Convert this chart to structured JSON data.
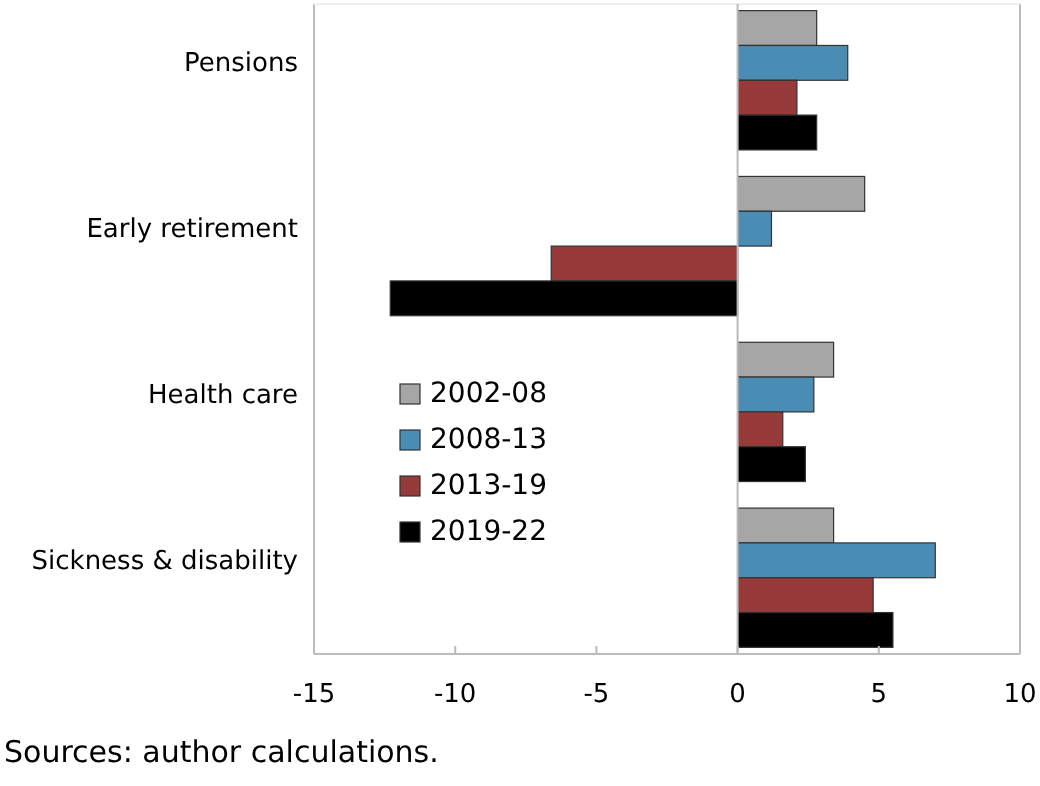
{
  "chart_data": {
    "type": "bar",
    "orientation": "horizontal",
    "categories": [
      "Pensions",
      "Early retirement",
      "Health care",
      "Sickness & disability"
    ],
    "series": [
      {
        "name": "2002-08",
        "color": "#a6a6a6",
        "values": [
          2.8,
          4.5,
          3.4,
          3.4
        ]
      },
      {
        "name": "2008-13",
        "color": "#4a8db4",
        "values": [
          3.9,
          1.2,
          2.7,
          7.0
        ]
      },
      {
        "name": "2013-19",
        "color": "#963a3a",
        "values": [
          2.1,
          -6.6,
          1.6,
          4.8
        ]
      },
      {
        "name": "2019-22",
        "color": "#000000",
        "values": [
          2.8,
          -12.3,
          2.4,
          5.5
        ]
      }
    ],
    "xlim": [
      -15,
      10
    ],
    "xticks": [
      -15,
      -10,
      -5,
      0,
      5,
      10
    ],
    "legend": "bottom left",
    "annotations": [
      "Sources: author calculations."
    ]
  }
}
